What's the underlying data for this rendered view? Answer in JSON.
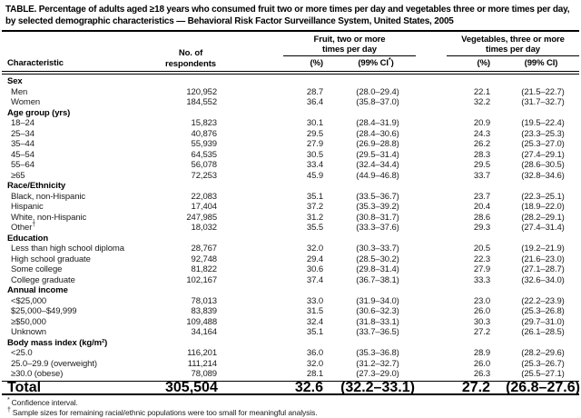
{
  "title": "TABLE. Percentage of adults aged ≥18 years who consumed fruit two or more times per day and vegetables three or more times per day, by selected demographic characteristics — Behavioral Risk Factor Surveillance System, United States, 2005",
  "header": {
    "characteristic": "Characteristic",
    "no_of": "No. of",
    "respondents": "respondents",
    "fruit_group_line1": "Fruit, two or more",
    "fruit_group_line2": "times per day",
    "veg_group_line1": "Vegetables, three or more",
    "veg_group_line2": "times per day",
    "fruit_pct": "(%)",
    "fruit_ci_open": "(99% CI",
    "fruit_ci_sup": "*",
    "fruit_ci_close": ")",
    "veg_pct": "(%)",
    "veg_ci": "(99% CI)"
  },
  "sections": [
    {
      "label": "Sex",
      "rows": [
        {
          "label": "Men",
          "respondents": "120,952",
          "fruit_pct": "28.7",
          "fruit_ci": "(28.0–29.4)",
          "veg_pct": "22.1",
          "veg_ci": "(21.5–22.7)"
        },
        {
          "label": "Women",
          "respondents": "184,552",
          "fruit_pct": "36.4",
          "fruit_ci": "(35.8–37.0)",
          "veg_pct": "32.2",
          "veg_ci": "(31.7–32.7)"
        }
      ]
    },
    {
      "label": "Age group (yrs)",
      "rows": [
        {
          "label": "18–24",
          "respondents": "15,823",
          "fruit_pct": "30.1",
          "fruit_ci": "(28.4–31.9)",
          "veg_pct": "20.9",
          "veg_ci": "(19.5–22.4)"
        },
        {
          "label": "25–34",
          "respondents": "40,876",
          "fruit_pct": "29.5",
          "fruit_ci": "(28.4–30.6)",
          "veg_pct": "24.3",
          "veg_ci": "(23.3–25.3)"
        },
        {
          "label": "35–44",
          "respondents": "55,939",
          "fruit_pct": "27.9",
          "fruit_ci": "(26.9–28.8)",
          "veg_pct": "26.2",
          "veg_ci": "(25.3–27.0)"
        },
        {
          "label": "45–54",
          "respondents": "64,535",
          "fruit_pct": "30.5",
          "fruit_ci": "(29.5–31.4)",
          "veg_pct": "28.3",
          "veg_ci": "(27.4–29.1)"
        },
        {
          "label": "55–64",
          "respondents": "56,078",
          "fruit_pct": "33.4",
          "fruit_ci": "(32.4–34.4)",
          "veg_pct": "29.5",
          "veg_ci": "(28.6–30.5)"
        },
        {
          "label": "≥65",
          "respondents": "72,253",
          "fruit_pct": "45.9",
          "fruit_ci": "(44.9–46.8)",
          "veg_pct": "33.7",
          "veg_ci": "(32.8–34.6)"
        }
      ]
    },
    {
      "label": "Race/Ethnicity",
      "rows": [
        {
          "label": "Black, non-Hispanic",
          "respondents": "22,083",
          "fruit_pct": "35.1",
          "fruit_ci": "(33.5–36.7)",
          "veg_pct": "23.7",
          "veg_ci": "(22.3–25.1)"
        },
        {
          "label": "Hispanic",
          "respondents": "17,404",
          "fruit_pct": "37.2",
          "fruit_ci": "(35.3–39.2)",
          "veg_pct": "20.4",
          "veg_ci": "(18.9–22.0)"
        },
        {
          "label": "White, non-Hispanic",
          "respondents": "247,985",
          "fruit_pct": "31.2",
          "fruit_ci": "(30.8–31.7)",
          "veg_pct": "28.6",
          "veg_ci": "(28.2–29.1)"
        },
        {
          "label": "Other",
          "sup": "†",
          "respondents": "18,032",
          "fruit_pct": "35.5",
          "fruit_ci": "(33.3–37.6)",
          "veg_pct": "29.3",
          "veg_ci": "(27.4–31.4)"
        }
      ]
    },
    {
      "label": "Education",
      "rows": [
        {
          "label": "Less than high school diploma",
          "respondents": "28,767",
          "fruit_pct": "32.0",
          "fruit_ci": "(30.3–33.7)",
          "veg_pct": "20.5",
          "veg_ci": "(19.2–21.9)"
        },
        {
          "label": "High school graduate",
          "respondents": "92,748",
          "fruit_pct": "29.4",
          "fruit_ci": "(28.5–30.2)",
          "veg_pct": "22.3",
          "veg_ci": "(21.6–23.0)"
        },
        {
          "label": "Some college",
          "respondents": "81,822",
          "fruit_pct": "30.6",
          "fruit_ci": "(29.8–31.4)",
          "veg_pct": "27.9",
          "veg_ci": "(27.1–28.7)"
        },
        {
          "label": "College graduate",
          "respondents": "102,167",
          "fruit_pct": "37.4",
          "fruit_ci": "(36.7–38.1)",
          "veg_pct": "33.3",
          "veg_ci": "(32.6–34.0)"
        }
      ]
    },
    {
      "label": "Annual income",
      "rows": [
        {
          "label": "<$25,000",
          "respondents": "78,013",
          "fruit_pct": "33.0",
          "fruit_ci": "(31.9–34.0)",
          "veg_pct": "23.0",
          "veg_ci": "(22.2–23.9)"
        },
        {
          "label": "$25,000–$49,999",
          "respondents": "83,839",
          "fruit_pct": "31.5",
          "fruit_ci": "(30.6–32.3)",
          "veg_pct": "26.0",
          "veg_ci": "(25.3–26.8)"
        },
        {
          "label": "≥$50,000",
          "respondents": "109,488",
          "fruit_pct": "32.4",
          "fruit_ci": "(31.8–33.1)",
          "veg_pct": "30.3",
          "veg_ci": "(29.7–31.0)"
        },
        {
          "label": "Unknown",
          "respondents": "34,164",
          "fruit_pct": "35.1",
          "fruit_ci": "(33.7–36.5)",
          "veg_pct": "27.2",
          "veg_ci": "(26.1–28.5)"
        }
      ]
    },
    {
      "label": "Body mass index (kg/m²)",
      "rows": [
        {
          "label": "<25.0",
          "respondents": "116,201",
          "fruit_pct": "36.0",
          "fruit_ci": "(35.3–36.8)",
          "veg_pct": "28.9",
          "veg_ci": "(28.2–29.6)"
        },
        {
          "label": "25.0–29.9 (overweight)",
          "respondents": "111,214",
          "fruit_pct": "32.0",
          "fruit_ci": "(31.2–32.7)",
          "veg_pct": "26.0",
          "veg_ci": "(25.3–26.7)"
        },
        {
          "label": "≥30.0 (obese)",
          "respondents": "78,089",
          "fruit_pct": "28.1",
          "fruit_ci": "(27.3–29.0)",
          "veg_pct": "26.3",
          "veg_ci": "(25.5–27.1)"
        }
      ]
    }
  ],
  "total": {
    "label": "Total",
    "respondents": "305,504",
    "fruit_pct": "32.6",
    "fruit_ci": "(32.2–33.1)",
    "veg_pct": "27.2",
    "veg_ci": "(26.8–27.6)"
  },
  "footnotes": [
    {
      "marker": "*",
      "text": "Confidence interval."
    },
    {
      "marker": "†",
      "text": "Sample sizes for remaining racial/ethnic populations were too small for meaningful analysis."
    }
  ]
}
